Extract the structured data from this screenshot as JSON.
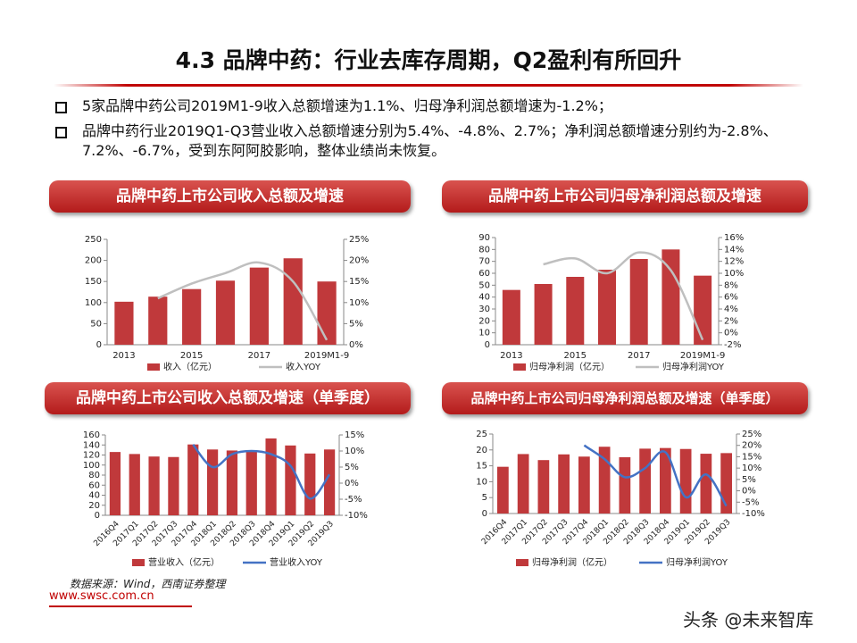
{
  "header": {
    "title": "4.3 品牌中药：行业去库存周期，Q2盈利有所回升"
  },
  "bullets": [
    "5家品牌中药公司2019M1-9收入总额增速为1.1%、归母净利润总额增速为-1.2%；",
    "品牌中药行业2019Q1-Q3营业收入总额增速分别为5.4%、-4.8%、2.7%；净利润总额增速分别约为-2.8%、7.2%、-6.7%，受到东阿阿胶影响，整体业绩尚未恢复。"
  ],
  "chart_data": [
    {
      "type": "combo",
      "title": "品牌中药上市公司收入总额及增速",
      "categories": [
        "2013",
        null,
        "2015",
        null,
        "2017",
        null,
        "2019M1-9"
      ],
      "series": [
        {
          "name": "收入（亿元）",
          "type": "bar",
          "color": "#c0393b",
          "values": [
            102,
            114,
            132,
            152,
            183,
            205,
            150
          ]
        },
        {
          "name": "收入YOY",
          "type": "line",
          "axis": "y2",
          "color": "#bfbfbf",
          "values": [
            null,
            11,
            14.5,
            17,
            19.5,
            15,
            1.1
          ]
        }
      ],
      "ylim": [
        0,
        250
      ],
      "yticks": [
        0,
        50,
        100,
        150,
        200,
        250
      ],
      "y2lim": [
        0,
        25
      ],
      "y2ticks": [
        {
          "value": 0,
          "label": "0%"
        },
        {
          "value": 5,
          "label": "5%"
        },
        {
          "value": 10,
          "label": "10%"
        },
        {
          "value": 15,
          "label": "15%"
        },
        {
          "value": 20,
          "label": "20%"
        },
        {
          "value": 25,
          "label": "25%"
        }
      ]
    },
    {
      "type": "combo",
      "title": "品牌中药上市公司归母净利润总额及增速",
      "categories": [
        "2013",
        null,
        "2015",
        null,
        "2017",
        null,
        "2019M1-9"
      ],
      "series": [
        {
          "name": "归母净利润（亿元）",
          "type": "bar",
          "color": "#c0393b",
          "values": [
            46,
            51,
            57,
            63,
            72,
            80,
            58
          ]
        },
        {
          "name": "归母净利润YOY",
          "type": "line",
          "axis": "y2",
          "color": "#bfbfbf",
          "values": [
            null,
            11.5,
            12.5,
            10,
            13.5,
            10.5,
            -1.2
          ]
        }
      ],
      "ylim": [
        0,
        90
      ],
      "yticks": [
        0,
        10,
        20,
        30,
        40,
        50,
        60,
        70,
        80,
        90
      ],
      "y2lim": [
        -2,
        16
      ],
      "y2ticks": [
        {
          "value": -2,
          "label": "-2%"
        },
        {
          "value": 0,
          "label": "0%"
        },
        {
          "value": 2,
          "label": "2%"
        },
        {
          "value": 4,
          "label": "4%"
        },
        {
          "value": 6,
          "label": "6%"
        },
        {
          "value": 8,
          "label": "8%"
        },
        {
          "value": 10,
          "label": "10%"
        },
        {
          "value": 12,
          "label": "12%"
        },
        {
          "value": 14,
          "label": "14%"
        },
        {
          "value": 16,
          "label": "16%"
        }
      ]
    },
    {
      "type": "combo",
      "title": "品牌中药上市公司收入总额及增速（单季度）",
      "categories": [
        "2016Q4",
        "2017Q1",
        "2017Q2",
        "2017Q3",
        "2017Q4",
        "2018Q1",
        "2018Q2",
        "2018Q3",
        "2018Q4",
        "2019Q1",
        "2019Q2",
        "2019Q3"
      ],
      "series": [
        {
          "name": "营业收入（亿元）",
          "type": "bar",
          "color": "#c0393b",
          "values": [
            126,
            122,
            117,
            116,
            141,
            131,
            129,
            128,
            153,
            139,
            123,
            131
          ]
        },
        {
          "name": "营业收入YOY",
          "type": "line",
          "axis": "y2",
          "color": "#4472c4",
          "values": [
            null,
            null,
            null,
            null,
            12,
            5,
            9,
            10,
            9,
            5.4,
            -4.8,
            2.7
          ]
        }
      ],
      "ylim": [
        0,
        160
      ],
      "yticks": [
        0,
        20,
        40,
        60,
        80,
        100,
        120,
        140,
        160
      ],
      "y2lim": [
        -10,
        15
      ],
      "y2ticks": [
        {
          "value": -10,
          "label": "-10%"
        },
        {
          "value": -5,
          "label": "-5%"
        },
        {
          "value": 0,
          "label": "0%"
        },
        {
          "value": 5,
          "label": "5%"
        },
        {
          "value": 10,
          "label": "10%"
        },
        {
          "value": 15,
          "label": "15%"
        }
      ]
    },
    {
      "type": "combo",
      "title": "品牌中药上市公司归母净利润总额及增速（单季度）",
      "categories": [
        "2016Q4",
        "2017Q1",
        "2017Q2",
        "2017Q3",
        "2017Q4",
        "2018Q1",
        "2018Q2",
        "2018Q3",
        "2018Q4",
        "2019Q1",
        "2019Q2",
        "2019Q3"
      ],
      "series": [
        {
          "name": "归母净利润（亿元）",
          "type": "bar",
          "color": "#c0393b",
          "values": [
            14.7,
            18.7,
            16.8,
            18.6,
            17.9,
            21,
            17.7,
            20.4,
            20.6,
            20.3,
            18.8,
            19
          ]
        },
        {
          "name": "归母净利润YOY",
          "type": "line",
          "axis": "y2",
          "color": "#4472c4",
          "values": [
            null,
            null,
            null,
            null,
            20,
            14,
            6,
            10,
            17,
            -2.8,
            7.2,
            -6.7
          ]
        }
      ],
      "ylim": [
        0,
        25
      ],
      "yticks": [
        0,
        5,
        10,
        15,
        20,
        25
      ],
      "y2lim": [
        -10,
        25
      ],
      "y2ticks": [
        {
          "value": -10,
          "label": "-10%"
        },
        {
          "value": -5,
          "label": "-5%"
        },
        {
          "value": 0,
          "label": "0%"
        },
        {
          "value": 5,
          "label": "5%"
        },
        {
          "value": 10,
          "label": "10%"
        },
        {
          "value": 15,
          "label": "15%"
        },
        {
          "value": 20,
          "label": "20%"
        },
        {
          "value": 25,
          "label": "25%"
        }
      ]
    }
  ],
  "source": "数据来源：Wind，西南证券整理",
  "footer": {
    "url": "www.swsc.com.cn",
    "watermark": "头条 @未来智库"
  }
}
